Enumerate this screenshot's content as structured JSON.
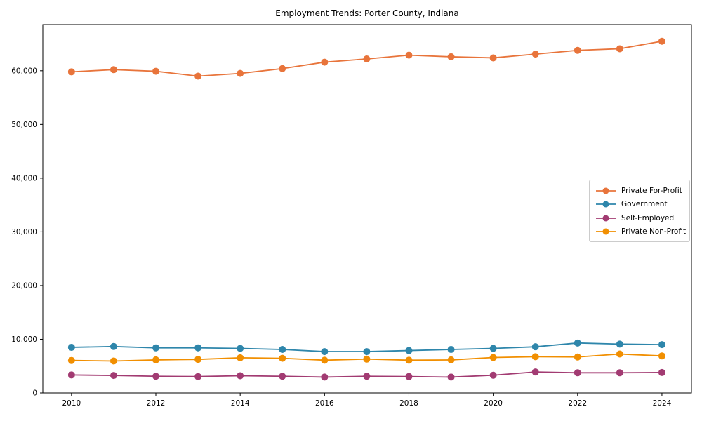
{
  "chart_data": {
    "type": "line",
    "title": "Employment Trends: Porter County, Indiana",
    "xlabel": "",
    "ylabel": "",
    "x": [
      2010,
      2011,
      2012,
      2013,
      2014,
      2015,
      2016,
      2017,
      2018,
      2019,
      2020,
      2021,
      2022,
      2023,
      2024
    ],
    "series": [
      {
        "name": "Private For-Profit",
        "color": "#E8743B",
        "values": [
          59800,
          60200,
          59900,
          59000,
          59500,
          60400,
          61600,
          62200,
          62900,
          62600,
          62400,
          63100,
          63800,
          64100,
          65500
        ]
      },
      {
        "name": "Government",
        "color": "#2E86AB",
        "values": [
          8500,
          8650,
          8400,
          8400,
          8300,
          8100,
          7700,
          7700,
          7900,
          8100,
          8300,
          8600,
          9300,
          9100,
          9000
        ]
      },
      {
        "name": "Self-Employed",
        "color": "#A23B72",
        "values": [
          3350,
          3250,
          3100,
          3050,
          3200,
          3100,
          2950,
          3100,
          3050,
          2950,
          3300,
          3900,
          3750,
          3750,
          3800
        ]
      },
      {
        "name": "Private Non-Profit",
        "color": "#F18F01",
        "values": [
          6050,
          5950,
          6150,
          6250,
          6550,
          6450,
          6100,
          6300,
          6100,
          6150,
          6600,
          6750,
          6700,
          7250,
          6900
        ]
      }
    ],
    "xlim": [
      2009.32,
      2024.7
    ],
    "ylim": [
      0,
      68600
    ],
    "xticks": {
      "values": [
        2010,
        2012,
        2014,
        2016,
        2018,
        2020,
        2022,
        2024
      ],
      "labels": [
        "2010",
        "2012",
        "2014",
        "2016",
        "2018",
        "2020",
        "2022",
        "2024"
      ]
    },
    "yticks": {
      "values": [
        0,
        10000,
        20000,
        30000,
        40000,
        50000,
        60000
      ],
      "labels": [
        "0",
        "10,000",
        "20,000",
        "30,000",
        "40,000",
        "50,000",
        "60,000"
      ]
    },
    "grid": false,
    "legend_position": "center right",
    "marker": "circle",
    "spine_color": "#000000"
  }
}
